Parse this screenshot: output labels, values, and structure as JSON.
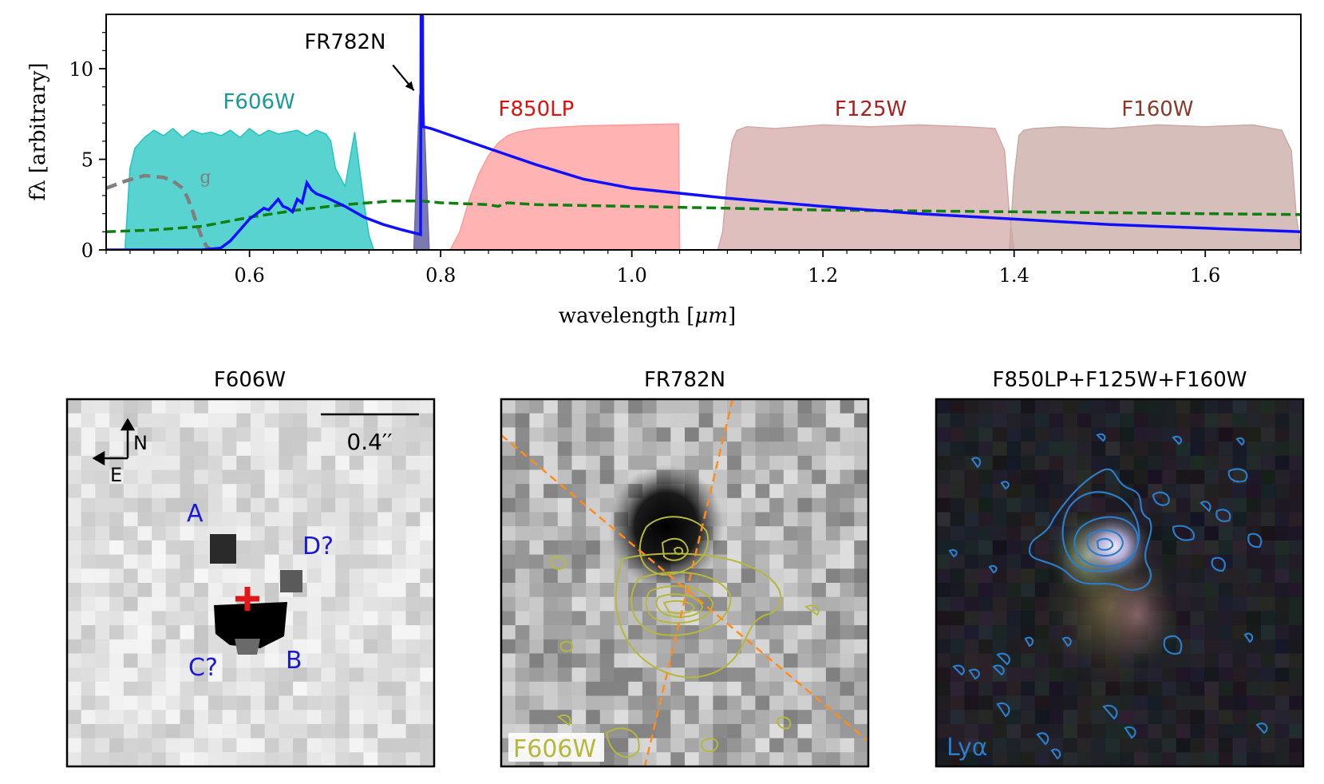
{
  "chart_data": [
    {
      "type": "line",
      "xlabel_prefix": "wavelength [",
      "xlabel_unit": "μm",
      "xlabel_suffix": "]",
      "ylabel": "fλ [arbitrary]",
      "xlim": [
        0.45,
        1.7
      ],
      "ylim": [
        0,
        13
      ],
      "xticks": [
        0.6,
        0.8,
        1.0,
        1.2,
        1.4,
        1.6
      ],
      "xtick_labels": [
        "0.6",
        "0.8",
        "1.0",
        "1.2",
        "1.4",
        "1.6"
      ],
      "yticks": [
        0,
        5,
        10
      ],
      "ytick_labels": [
        "0",
        "5",
        "10"
      ],
      "filters": [
        {
          "name": "F606W",
          "color": "#22c4c0",
          "text_color": "#1a9a96",
          "label_x": 0.61,
          "label_y": 7.8,
          "x": [
            0.47,
            0.475,
            0.48,
            0.49,
            0.5,
            0.51,
            0.52,
            0.53,
            0.54,
            0.55,
            0.56,
            0.57,
            0.58,
            0.59,
            0.6,
            0.61,
            0.62,
            0.63,
            0.64,
            0.65,
            0.66,
            0.67,
            0.68,
            0.685,
            0.69,
            0.7,
            0.705,
            0.71,
            0.715,
            0.72,
            0.725,
            0.73
          ],
          "y": [
            0.3,
            4.5,
            5.6,
            6.2,
            6.6,
            6.3,
            6.7,
            6.2,
            6.6,
            6.4,
            6.5,
            6.3,
            6.6,
            6.2,
            6.7,
            6.3,
            6.6,
            6.4,
            6.5,
            6.6,
            6.3,
            6.6,
            6.4,
            6.0,
            4.5,
            3.5,
            5.0,
            6.5,
            4.5,
            2.5,
            0.8,
            0.0
          ]
        },
        {
          "name": "FR782N",
          "color": "#6b6ba8",
          "text_color": "#000000",
          "label_x": 0.7,
          "label_y": 11.1,
          "x": [
            0.772,
            0.775,
            0.778,
            0.78,
            0.782,
            0.785,
            0.788
          ],
          "y": [
            0,
            4.5,
            8.5,
            8.9,
            8.5,
            4.0,
            0
          ]
        },
        {
          "name": "F850LP",
          "color": "#ff9a9a",
          "text_color": "#e01010",
          "label_x": 0.9,
          "label_y": 7.4,
          "x": [
            0.81,
            0.82,
            0.83,
            0.84,
            0.85,
            0.86,
            0.87,
            0.88,
            0.9,
            0.95,
            1.0,
            1.048,
            1.049,
            1.05
          ],
          "y": [
            0,
            1.0,
            2.8,
            4.2,
            5.2,
            5.9,
            6.3,
            6.5,
            6.7,
            6.85,
            6.9,
            6.95,
            6.95,
            0
          ]
        },
        {
          "name": "F125W",
          "color": "#d4a8a8",
          "text_color": "#a82020",
          "label_x": 1.25,
          "label_y": 7.4,
          "x": [
            1.09,
            1.095,
            1.1,
            1.105,
            1.11,
            1.12,
            1.15,
            1.2,
            1.25,
            1.3,
            1.35,
            1.38,
            1.39,
            1.395,
            1.4
          ],
          "y": [
            0,
            1.0,
            4.0,
            6.0,
            6.6,
            6.8,
            6.7,
            6.9,
            6.8,
            6.9,
            6.8,
            6.7,
            5.5,
            2.0,
            0
          ]
        },
        {
          "name": "F160W",
          "color": "#c8aaa4",
          "text_color": "#8b3a2a",
          "label_x": 1.55,
          "label_y": 7.4,
          "x": [
            1.395,
            1.4,
            1.405,
            1.41,
            1.42,
            1.45,
            1.5,
            1.55,
            1.6,
            1.65,
            1.68,
            1.69,
            1.695,
            1.7
          ],
          "y": [
            0,
            4.0,
            6.3,
            6.6,
            6.7,
            6.8,
            6.7,
            6.9,
            6.8,
            6.9,
            6.6,
            5.5,
            2.0,
            0
          ]
        }
      ],
      "series": [
        {
          "name": "g",
          "style": "gray-dashed",
          "color": "#7f7f7f",
          "x": [
            0.45,
            0.47,
            0.49,
            0.51,
            0.52,
            0.53,
            0.535,
            0.54,
            0.545,
            0.55,
            0.555,
            0.56
          ],
          "y": [
            3.4,
            3.8,
            4.1,
            4.0,
            3.8,
            3.4,
            2.9,
            2.2,
            1.4,
            0.7,
            0.2,
            0.0
          ]
        },
        {
          "name": "green-dashed",
          "style": "green-dashed",
          "color": "#0f7f0f",
          "x": [
            0.45,
            0.5,
            0.55,
            0.6,
            0.65,
            0.7,
            0.75,
            0.78,
            0.8,
            0.85,
            0.86,
            0.87,
            0.9,
            1.0,
            1.2,
            1.4,
            1.6,
            1.7
          ],
          "y": [
            1.0,
            1.1,
            1.3,
            1.8,
            2.2,
            2.5,
            2.7,
            2.7,
            2.6,
            2.5,
            2.4,
            2.6,
            2.5,
            2.4,
            2.2,
            2.1,
            2.0,
            1.95
          ]
        },
        {
          "name": "model",
          "style": "blue-solid",
          "color": "#1010ff",
          "x": [
            0.45,
            0.55,
            0.57,
            0.58,
            0.59,
            0.6,
            0.605,
            0.61,
            0.615,
            0.62,
            0.625,
            0.63,
            0.635,
            0.64,
            0.645,
            0.65,
            0.655,
            0.66,
            0.665,
            0.67,
            0.68,
            0.7,
            0.72,
            0.74,
            0.76,
            0.779,
            0.7795,
            0.78,
            0.781,
            0.7815,
            0.782,
            0.79,
            0.85,
            0.9,
            0.95,
            1.0,
            1.1,
            1.2,
            1.3,
            1.4,
            1.5,
            1.6,
            1.7
          ],
          "y": [
            0,
            0,
            0.1,
            0.5,
            1.1,
            1.7,
            1.9,
            2.1,
            2.3,
            2.2,
            2.5,
            2.8,
            2.4,
            2.3,
            2.1,
            2.8,
            2.6,
            3.7,
            3.3,
            3.1,
            2.9,
            2.4,
            1.8,
            1.4,
            1.1,
            0.85,
            13.5,
            13.5,
            13.5,
            6.8,
            6.8,
            6.7,
            5.6,
            4.7,
            3.9,
            3.4,
            2.85,
            2.4,
            2.0,
            1.7,
            1.4,
            1.2,
            1.0
          ]
        }
      ],
      "annotations": [
        {
          "text": "FR782N",
          "arrow_from": [
            0.75,
            10.2
          ],
          "arrow_to": [
            0.772,
            8.8
          ]
        },
        {
          "text": "g",
          "x": 0.548,
          "y": 3.7
        }
      ]
    },
    {
      "type": "image",
      "title": "F606W",
      "scalebar": "0.4′′",
      "compass": [
        "N",
        "E"
      ],
      "labels": [
        {
          "text": "A",
          "color": "#1a1ad4"
        },
        {
          "text": "D?",
          "color": "#1a1ad4"
        },
        {
          "text": "C?",
          "color": "#1a1ad4"
        },
        {
          "text": "B",
          "color": "#1a1ad4"
        }
      ]
    },
    {
      "type": "image",
      "title": "FR782N",
      "contour_label": "F606W",
      "contour_color": "#b5b83a"
    },
    {
      "type": "image",
      "title": "F850LP+F125W+F160W",
      "contour_label": "Lyα",
      "contour_color": "#2b7dc8"
    }
  ]
}
